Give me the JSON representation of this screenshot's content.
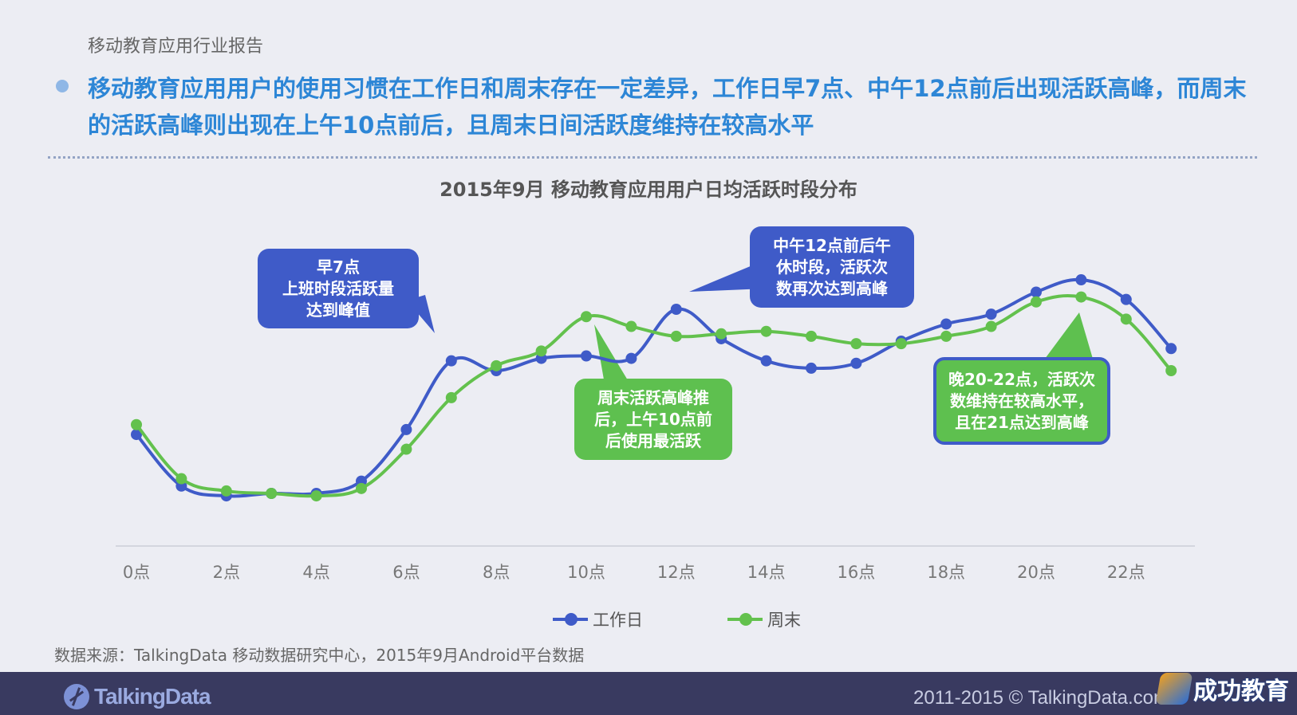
{
  "header": {
    "report_label": "移动教育应用行业报告",
    "headline": "移动教育应用用户的使用习惯在工作日和周末存在一定差异，工作日早7点、中午12点前后出现活跃高峰，而周末的活跃高峰则出现在上午10点前后，且周末日间活跃度维持在较高水平"
  },
  "chart_data": {
    "type": "line",
    "title": "2015年9月  移动教育应用用户日均活跃时段分布",
    "x": [
      0,
      1,
      2,
      3,
      4,
      5,
      6,
      7,
      8,
      9,
      10,
      11,
      12,
      13,
      14,
      15,
      16,
      17,
      18,
      19,
      20,
      21,
      22,
      23
    ],
    "tick_labels": [
      "0点",
      "2点",
      "4点",
      "6点",
      "8点",
      "10点",
      "12点",
      "14点",
      "16点",
      "18点",
      "20点",
      "22点"
    ],
    "tick_positions": [
      0,
      2,
      4,
      6,
      8,
      10,
      12,
      14,
      16,
      18,
      20,
      22
    ],
    "ylim": [
      0,
      100
    ],
    "y_axis_visible": false,
    "grid": false,
    "series": [
      {
        "name": "工作日",
        "color": "#3f5bc8",
        "values": [
          24,
          3,
          -1,
          0,
          0,
          5,
          26,
          54,
          50,
          55,
          56,
          55,
          75,
          63,
          54,
          51,
          53,
          62,
          69,
          73,
          82,
          87,
          79,
          59
        ]
      },
      {
        "name": "周末",
        "color": "#63c14d",
        "values": [
          28,
          6,
          1,
          0,
          -1,
          2,
          18,
          39,
          52,
          58,
          72,
          68,
          64,
          65,
          66,
          64,
          61,
          61,
          64,
          68,
          78,
          80,
          71,
          50
        ]
      }
    ],
    "annotations": {
      "morning": "早7点\n上班时段活跃量\n达到峰值",
      "noon": "中午12点前后午\n休时段，活跃次\n数再次达到高峰",
      "weekend": "周末活跃高峰推\n后，上午10点前\n后使用最活跃",
      "evening": "晚20-22点，活跃次\n数维持在较高水平，\n且在21点达到高峰"
    },
    "legend_position": "bottom-center"
  },
  "source_note": "数据来源：TalkingData 移动数据研究中心，2015年9月Android平台数据",
  "footer": {
    "logo_text": "TalkingData",
    "copyright": "2011-2015 © TalkingData.com",
    "watermark_text": "成功教育"
  }
}
